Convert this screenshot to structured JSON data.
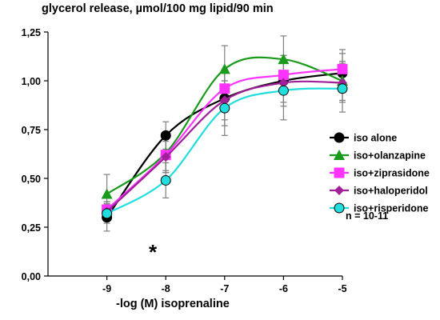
{
  "chart_data": {
    "type": "line",
    "title": "glycerol release, µmol/100 mg lipid/90 min",
    "xlabel": "-log (M) isoprenaline",
    "ylabel": "",
    "x": [
      -9,
      -8,
      -7,
      -6,
      -5
    ],
    "x_ticks": [
      "-9",
      "-8",
      "-7",
      "-6",
      "-5"
    ],
    "xlim": [
      -10.0,
      -5.0
    ],
    "ylim": [
      0,
      1.25
    ],
    "y_ticks": [
      "0,00",
      "0,25",
      "0,50",
      "0,75",
      "1,00",
      "1,25"
    ],
    "y_tick_values": [
      0,
      0.25,
      0.5,
      0.75,
      1.0,
      1.25
    ],
    "grid": false,
    "legend_position": "right",
    "series": [
      {
        "name": "iso alone",
        "color": "#000000",
        "marker": "circle",
        "values": [
          0.3,
          0.72,
          0.91,
          1.0,
          1.04
        ],
        "errors": [
          0.07,
          0.07,
          0.14,
          0.13,
          0.1
        ]
      },
      {
        "name": "iso+olanzapine",
        "color": "#1a9a1a",
        "marker": "triangle",
        "values": [
          0.42,
          0.63,
          1.06,
          1.11,
          1.0
        ],
        "errors": [
          0.1,
          0.1,
          0.12,
          0.12,
          0.1
        ]
      },
      {
        "name": "iso+ziprasidone",
        "color": "#ff33ff",
        "marker": "square",
        "values": [
          0.34,
          0.62,
          0.96,
          1.03,
          1.06
        ],
        "errors": [
          0.04,
          0.08,
          0.1,
          0.1,
          0.1
        ]
      },
      {
        "name": "iso+haloperidol",
        "color": "#a0209a",
        "marker": "diamond",
        "values": [
          0.33,
          0.61,
          0.9,
          0.99,
          0.99
        ],
        "errors": [
          0.05,
          0.08,
          0.1,
          0.1,
          0.1
        ]
      },
      {
        "name": "iso+risperidone",
        "color": "#22dddd",
        "marker": "circle",
        "values": [
          0.32,
          0.49,
          0.86,
          0.95,
          0.96
        ],
        "errors": [
          0.05,
          0.09,
          0.14,
          0.15,
          0.12
        ]
      }
    ],
    "annotations": [
      {
        "text": "*"
      },
      {
        "text": "n = 10-11"
      }
    ]
  }
}
